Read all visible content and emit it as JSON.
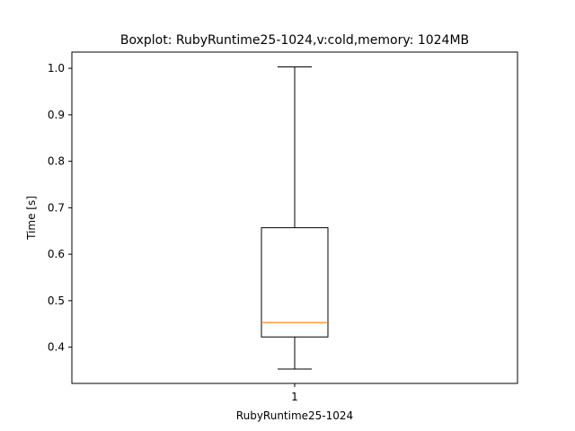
{
  "chart_data": {
    "type": "box",
    "title": "Boxplot: RubyRuntime25-1024,v:cold,memory: 1024MB",
    "xlabel": "RubyRuntime25-1024",
    "ylabel": "Time [s]",
    "categories": [
      "1"
    ],
    "ylim": [
      0.322,
      1.035
    ],
    "yticks": [
      "0.4",
      "0.5",
      "0.6",
      "0.7",
      "0.8",
      "0.9",
      "1.0"
    ],
    "grid": false,
    "boxes": [
      {
        "category": "1",
        "whisker_low": 0.353,
        "q1": 0.422,
        "median": 0.453,
        "q3": 0.657,
        "whisker_high": 1.003
      }
    ],
    "colors": {
      "box": "#000000",
      "median": "#ff7f0e",
      "axes": "#000000",
      "background": "#ffffff"
    }
  }
}
